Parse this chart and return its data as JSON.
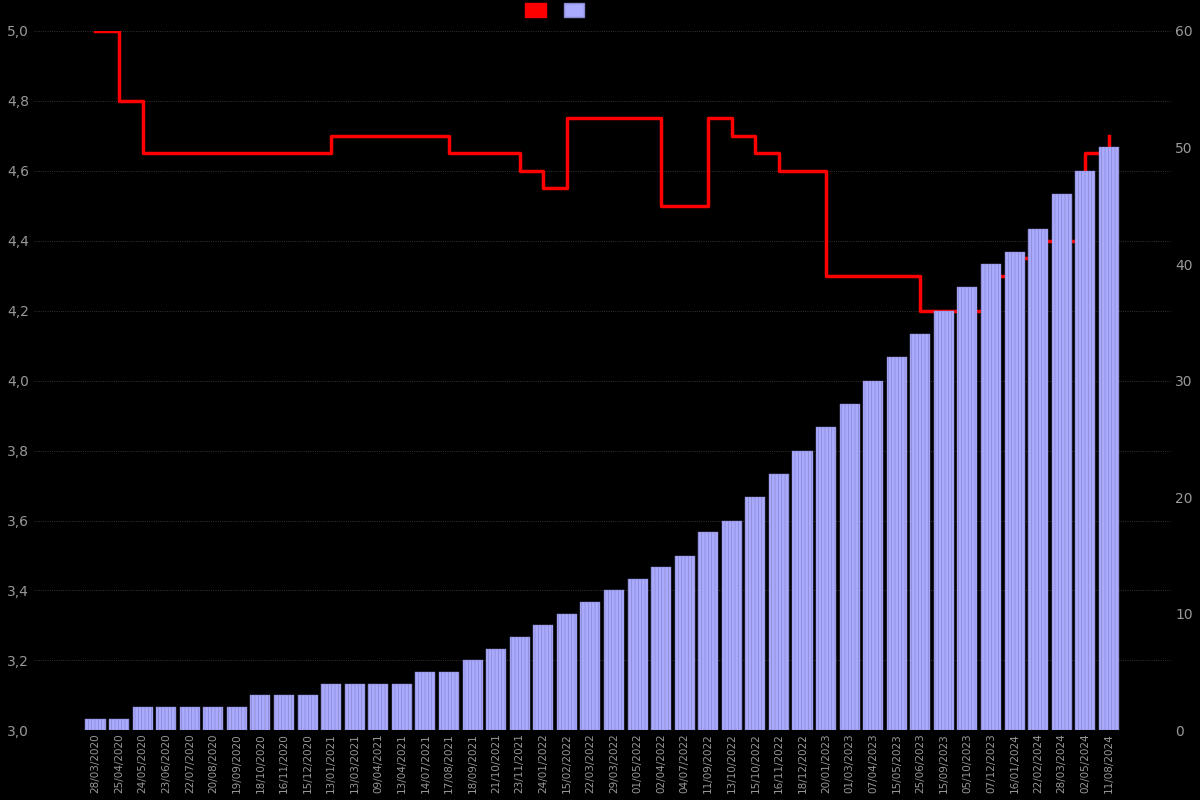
{
  "background_color": "#000000",
  "text_color": "#999999",
  "left_ylim": [
    3.0,
    5.0
  ],
  "right_ylim": [
    0,
    60
  ],
  "left_yticks": [
    3.0,
    3.2,
    3.4,
    3.6,
    3.8,
    4.0,
    4.2,
    4.4,
    4.6,
    4.8,
    5.0
  ],
  "right_yticks": [
    0,
    10,
    20,
    30,
    40,
    50,
    60
  ],
  "bar_color_face": "#aaaaff",
  "bar_color_edge": "#8888cc",
  "bar_hatch_color": "#5555aa",
  "line_color": "#ff0000",
  "line_width": 2.5,
  "dates": [
    "28/03/2020",
    "25/04/2020",
    "24/05/2020",
    "23/06/2020",
    "22/07/2020",
    "20/08/2020",
    "19/09/2020",
    "18/10/2020",
    "16/11/2020",
    "15/12/2020",
    "13/01/2021",
    "13/03/2021",
    "09/04/2021",
    "13/04/2021",
    "14/07/2021",
    "17/08/2021",
    "18/09/2021",
    "21/10/2021",
    "23/11/2021",
    "24/01/2022",
    "15/02/2022",
    "22/03/2022",
    "29/03/2022",
    "01/05/2022",
    "02/04/2022",
    "04/07/2022",
    "11/09/2022",
    "13/10/2022",
    "15/10/2022",
    "16/11/2022",
    "18/12/2022",
    "20/01/2023",
    "01/03/2023",
    "07/04/2023",
    "15/05/2023",
    "25/06/2023",
    "15/09/2023",
    "05/10/2023",
    "07/12/2023",
    "16/01/2024",
    "22/02/2024",
    "28/03/2024",
    "02/05/2024",
    "11/08/2024"
  ],
  "bar_values": [
    1,
    1,
    2,
    2,
    2,
    2,
    2,
    3,
    3,
    3,
    4,
    4,
    4,
    4,
    5,
    5,
    6,
    7,
    8,
    9,
    10,
    11,
    12,
    13,
    14,
    15,
    17,
    18,
    20,
    22,
    24,
    26,
    28,
    30,
    32,
    34,
    36,
    38,
    40,
    41,
    43,
    46,
    48,
    50
  ],
  "rating_values": [
    5.0,
    4.8,
    4.65,
    4.65,
    4.65,
    4.65,
    4.65,
    4.65,
    4.65,
    4.65,
    4.7,
    4.7,
    4.7,
    4.7,
    4.7,
    4.65,
    4.65,
    4.65,
    4.6,
    4.55,
    4.75,
    4.75,
    4.75,
    4.75,
    4.5,
    4.5,
    4.75,
    4.7,
    4.65,
    4.6,
    4.6,
    4.3,
    4.3,
    4.3,
    4.3,
    4.2,
    4.2,
    4.2,
    4.3,
    4.35,
    4.4,
    4.4,
    4.65,
    4.7
  ]
}
